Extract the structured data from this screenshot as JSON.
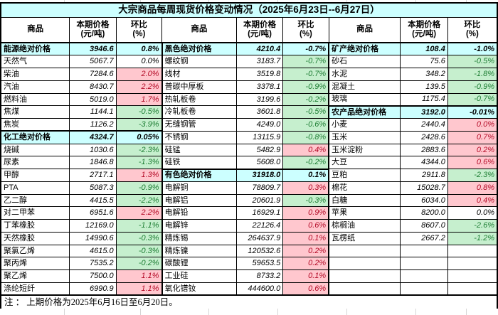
{
  "title": "大宗商品每周现货价格变动情况（2025年6月23日--6月27日）",
  "note": "注 ： 上期价格为2025年6月16日至6月20日。",
  "column_headers": {
    "commodity": "商品",
    "price_line1": "本期价格",
    "price_line2": "(元/吨)",
    "pct_line1": "环比",
    "pct_line2": "(%)"
  },
  "colors": {
    "title_bg": "#CCFFFF",
    "section_bg": "#CCFFFF",
    "increase_bg": "#FFC7CE",
    "increase_text": "#B50C28",
    "decrease_bg": "#C6EFCE",
    "decrease_text": "#1E7E34",
    "border": "#000000"
  },
  "chart_data": {
    "type": "table",
    "period_current": "2025年6月23日--6月27日",
    "period_previous": "2025年6月16日至6月20日",
    "unit": "元/吨",
    "row_styles_legend": {
      "section": "分类绝对价格行(青底粗斜体)",
      "up": "上涨(粉底红字)",
      "down": "下跌(绿底绿字)",
      "flat": "持平(白底黑字)"
    },
    "groups": [
      {
        "rows": [
          [
            "能源绝对价格",
            "3946.6",
            "0.8%",
            "section"
          ],
          [
            "天然气",
            "5067.7",
            "0.0%",
            "flat"
          ],
          [
            "柴油",
            "7284.6",
            "2.0%",
            "up"
          ],
          [
            "汽油",
            "8430.7",
            "2.2%",
            "up"
          ],
          [
            "燃料油",
            "5019.0",
            "1.7%",
            "up"
          ],
          [
            "焦煤",
            "1144.1",
            "-0.5%",
            "down"
          ],
          [
            "焦炭",
            "1126.2",
            "-3.9%",
            "down"
          ],
          [
            "化工绝对价格",
            "4324.7",
            "0.05%",
            "section"
          ],
          [
            "烧碱",
            "1030.6",
            "-2.3%",
            "down"
          ],
          [
            "尿素",
            "1846.8",
            "-1.3%",
            "down"
          ],
          [
            "甲醇",
            "2717.1",
            "1.3%",
            "up"
          ],
          [
            "PTA",
            "5087.3",
            "-0.9%",
            "down"
          ],
          [
            "乙二醇",
            "4415.5",
            "-2.2%",
            "down"
          ],
          [
            "对二甲苯",
            "6951.6",
            "2.2%",
            "up"
          ],
          [
            "丁苯橡胶",
            "12169.0",
            "-1.1%",
            "down"
          ],
          [
            "天然橡胶",
            "14990.6",
            "-0.3%",
            "down"
          ],
          [
            "聚氯乙烯",
            "4615.0",
            "-0.3%",
            "down"
          ],
          [
            "聚丙烯",
            "7535.2",
            "-0.2%",
            "down"
          ],
          [
            "聚乙烯",
            "7500.0",
            "1.1%",
            "up"
          ],
          [
            "涤纶短纤",
            "6990.9",
            "1.1%",
            "up"
          ]
        ]
      },
      {
        "rows": [
          [
            "黑色绝对价格",
            "4210.4",
            "-0.7%",
            "section"
          ],
          [
            "螺纹钢",
            "3183.7",
            "-0.7%",
            "down"
          ],
          [
            "线材",
            "3519.8",
            "-0.7%",
            "down"
          ],
          [
            "普碳中厚板",
            "3378.1",
            "-0.9%",
            "down"
          ],
          [
            "热轧板卷",
            "3199.6",
            "-0.2%",
            "down"
          ],
          [
            "冷轧板卷",
            "3601.8",
            "-0.5%",
            "down"
          ],
          [
            "无缝钢管",
            "4249.0",
            "-0.6%",
            "down"
          ],
          [
            "不锈钢",
            "13115.9",
            "-0.8%",
            "down"
          ],
          [
            "硅锰",
            "5482.9",
            "0.4%",
            "up"
          ],
          [
            "硅铁",
            "5608.0",
            "-0.2%",
            "down"
          ],
          [
            "有色绝对价格",
            "31918.0",
            "0.1%",
            "section"
          ],
          [
            "电解铜",
            "78809.7",
            "0.3%",
            "up"
          ],
          [
            "电解铝",
            "20601.9",
            "-0.3%",
            "down"
          ],
          [
            "电解铅",
            "16929.1",
            "0.9%",
            "up"
          ],
          [
            "电解锌",
            "22126.4",
            "0.6%",
            "up"
          ],
          [
            "精炼锡",
            "264637.9",
            "0.1%",
            "up"
          ],
          [
            "精炼镍",
            "120532.6",
            "0.2%",
            "up"
          ],
          [
            "碳酸锂",
            "59653.5",
            "0.2%",
            "up"
          ],
          [
            "工业硅",
            "8733.2",
            "0.1%",
            "up"
          ],
          [
            "氧化镨钕",
            "444600.0",
            "0.6%",
            "up"
          ]
        ]
      },
      {
        "rows": [
          [
            "矿产绝对价格",
            "108.4",
            "-1.0%",
            "section"
          ],
          [
            "砂石",
            "75.6",
            "-0.5%",
            "down"
          ],
          [
            "水泥",
            "348.2",
            "-1.8%",
            "down"
          ],
          [
            "混凝土",
            "139.5",
            "-0.9%",
            "down"
          ],
          [
            "玻璃",
            "1175.4",
            "-0.7%",
            "down"
          ],
          [
            "农产品绝对价格",
            "3192.0",
            "-0.01%",
            "section"
          ],
          [
            "小麦",
            "2440.4",
            "0.0%",
            "up"
          ],
          [
            "玉米",
            "2428.6",
            "0.7%",
            "up"
          ],
          [
            "玉米淀粉",
            "2883.6",
            "0.2%",
            "up"
          ],
          [
            "大豆",
            "4344.0",
            "0.6%",
            "up"
          ],
          [
            "豆粕",
            "2911.8",
            "-2.3%",
            "down"
          ],
          [
            "棉花",
            "15028.7",
            "0.8%",
            "up"
          ],
          [
            "白糖",
            "6034.0",
            "0.4%",
            "up"
          ],
          [
            "苹果",
            "8200.0",
            "0.0%",
            "flat"
          ],
          [
            "棕榈油",
            "8607.0",
            "-2.6%",
            "down"
          ],
          [
            "瓦楞纸",
            "2667.2",
            "-1.2%",
            "down"
          ],
          [
            "",
            "",
            "",
            "empty"
          ],
          [
            "",
            "",
            "",
            "empty"
          ],
          [
            "",
            "",
            "",
            "empty"
          ],
          [
            "",
            "",
            "",
            "empty"
          ]
        ]
      }
    ]
  }
}
